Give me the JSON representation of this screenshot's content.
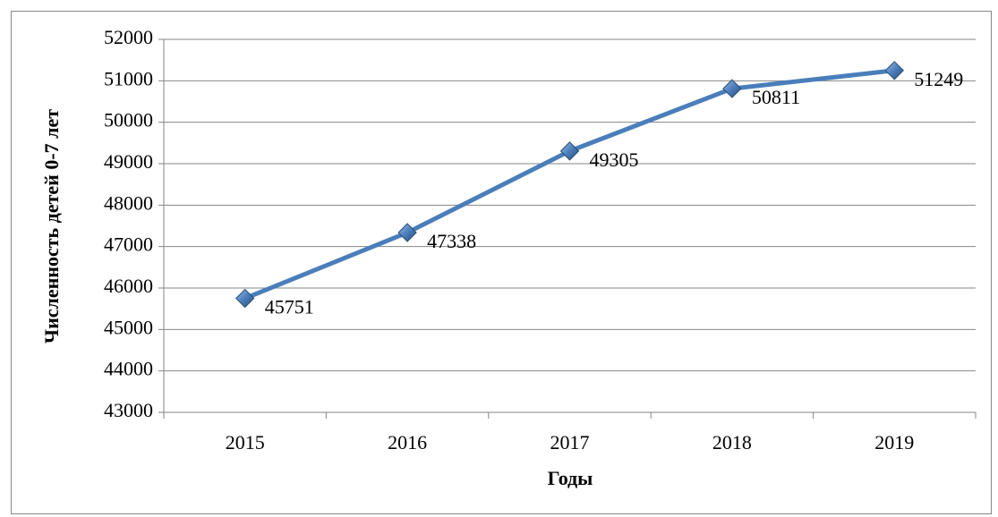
{
  "chart_data": {
    "type": "line",
    "x_label": "Годы",
    "y_label": "Численность детей 0-7 лет",
    "categories": [
      "2015",
      "2016",
      "2017",
      "2018",
      "2019"
    ],
    "series": [
      {
        "name": "Численность детей 0-7 лет",
        "color": "#4a7ebb",
        "values": [
          45751,
          47338,
          49305,
          50811,
          51249
        ]
      }
    ],
    "ylim": [
      43000,
      52000
    ],
    "yticks": [
      43000,
      44000,
      45000,
      46000,
      47000,
      48000,
      49000,
      50000,
      51000,
      52000
    ],
    "grid": true
  }
}
